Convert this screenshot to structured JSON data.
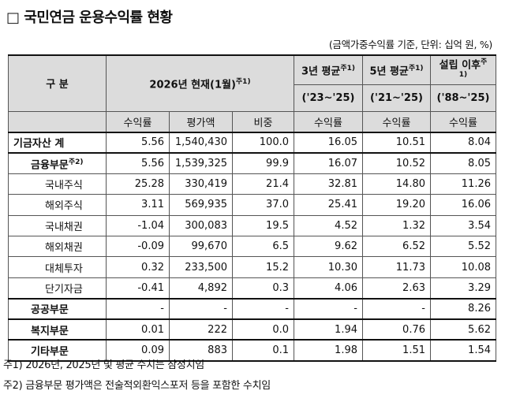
{
  "title": "□ 국민연금 운용수익률 현황",
  "unit_note": "(금액가중수익률 기준, 단위: 십억 원, %)",
  "header": {
    "category": "구 분",
    "current": "2026년 현재(1월)",
    "current_sup": "주1)",
    "avg3": "3년 평균",
    "avg3_sup": "주1)",
    "avg3_period": "('23~'25)",
    "avg5": "5년 평균",
    "avg5_sup": "주1)",
    "avg5_period": "('21~'25)",
    "since": "설립 이후",
    "since_sup": "주1)",
    "since_period": "('88~'25)",
    "sub": [
      "수익률",
      "평가액",
      "비중",
      "수익률",
      "수익률",
      "수익률"
    ]
  },
  "rows": [
    {
      "label": "기금자산 계",
      "sup": "",
      "level": 0,
      "values": [
        "5.56",
        "1,540,430",
        "100.0",
        "16.05",
        "10.51",
        "8.04"
      ]
    },
    {
      "label": "금융부문",
      "sup": "주2)",
      "level": 1,
      "values": [
        "5.56",
        "1,539,325",
        "99.9",
        "16.07",
        "10.52",
        "8.05"
      ]
    },
    {
      "label": "국내주식",
      "sup": "",
      "level": 2,
      "values": [
        "25.28",
        "330,419",
        "21.4",
        "32.81",
        "14.80",
        "11.26"
      ]
    },
    {
      "label": "해외주식",
      "sup": "",
      "level": 2,
      "values": [
        "3.11",
        "569,935",
        "37.0",
        "25.41",
        "19.20",
        "16.06"
      ]
    },
    {
      "label": "국내채권",
      "sup": "",
      "level": 2,
      "values": [
        "-1.04",
        "300,083",
        "19.5",
        "4.52",
        "1.32",
        "3.54"
      ]
    },
    {
      "label": "해외채권",
      "sup": "",
      "level": 2,
      "values": [
        "-0.09",
        "99,670",
        "6.5",
        "9.62",
        "6.52",
        "5.52"
      ]
    },
    {
      "label": "대체투자",
      "sup": "",
      "level": 2,
      "values": [
        "0.32",
        "233,500",
        "15.2",
        "10.30",
        "11.73",
        "10.08"
      ]
    },
    {
      "label": "단기자금",
      "sup": "",
      "level": 2,
      "values": [
        "-0.41",
        "4,892",
        "0.3",
        "4.06",
        "2.63",
        "3.29"
      ]
    },
    {
      "label": "공공부문",
      "sup": "",
      "level": 1,
      "values": [
        "-",
        "-",
        "-",
        "-",
        "-",
        "8.26"
      ]
    },
    {
      "label": "복지부문",
      "sup": "",
      "level": 1,
      "values": [
        "0.01",
        "222",
        "0.0",
        "1.94",
        "0.76",
        "5.62"
      ]
    },
    {
      "label": "기타부문",
      "sup": "",
      "level": 1,
      "values": [
        "0.09",
        "883",
        "0.1",
        "1.98",
        "1.51",
        "1.54"
      ]
    }
  ],
  "notes": [
    "주1) 2026년, 2025년 및 평균 수치는 잠정치임",
    "주2) 금융부문 평가액은 전술적외환익스포저 등을 포함한 수치임"
  ]
}
